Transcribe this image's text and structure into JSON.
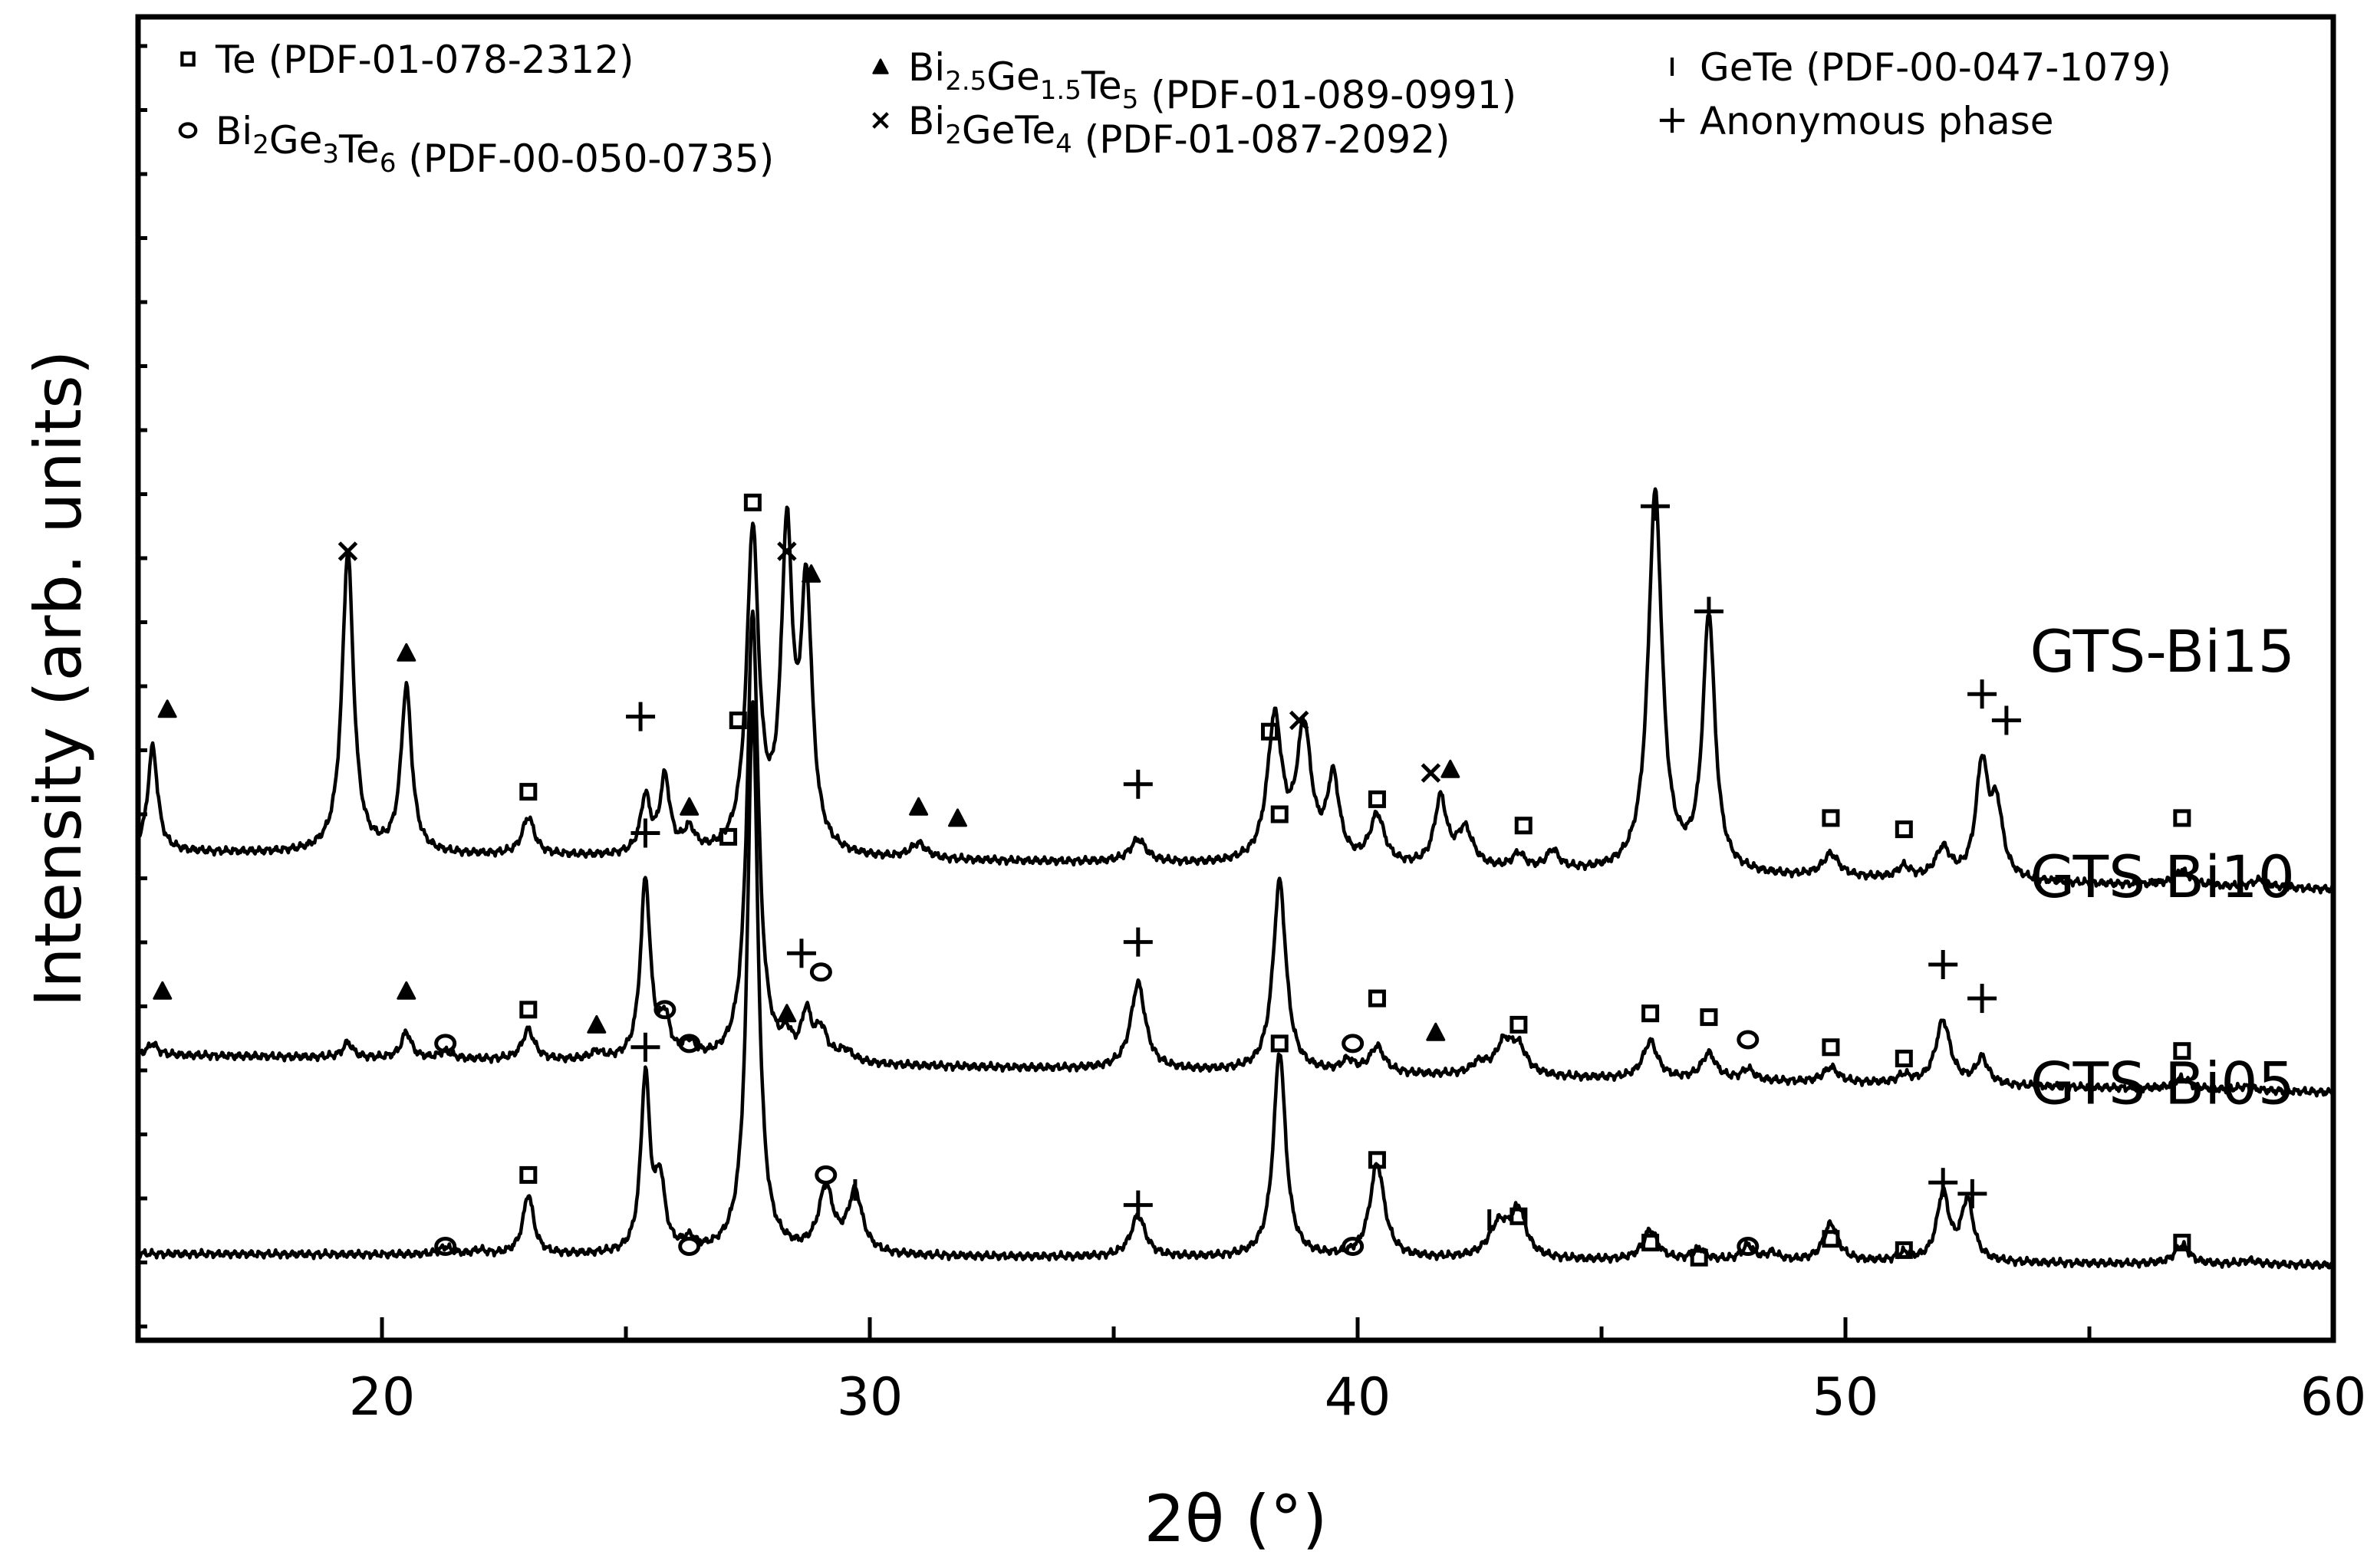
{
  "chart_data": {
    "type": "line",
    "xlabel": "2θ (°)",
    "ylabel": "Intensity (arb. units)",
    "xlim": [
      15,
      60
    ],
    "xticks": [
      20,
      30,
      40,
      50,
      60
    ],
    "grid": false,
    "legend_position": "top",
    "legend": [
      {
        "symbol": "square",
        "parts": [
          [
            "Te (PDF-01-078-2312)",
            ""
          ]
        ]
      },
      {
        "symbol": "circle",
        "parts": [
          [
            "Bi",
            ""
          ],
          [
            "2",
            "sub"
          ],
          [
            "Ge",
            ""
          ],
          [
            "3",
            "sub"
          ],
          [
            "Te",
            ""
          ],
          [
            "6",
            "sub"
          ],
          [
            " (PDF-00-050-0735)",
            ""
          ]
        ]
      },
      {
        "symbol": "triangle",
        "parts": [
          [
            "Bi",
            ""
          ],
          [
            "2.5",
            "sub"
          ],
          [
            "Ge",
            ""
          ],
          [
            "1.5",
            "sub"
          ],
          [
            "Te",
            ""
          ],
          [
            "5",
            "sub"
          ],
          [
            "  (PDF-01-089-0991)",
            ""
          ]
        ]
      },
      {
        "symbol": "cross",
        "parts": [
          [
            "Bi",
            ""
          ],
          [
            "2",
            "sub"
          ],
          [
            "GeTe",
            ""
          ],
          [
            "4",
            "sub"
          ],
          [
            "  (PDF-01-087-2092)",
            ""
          ]
        ]
      },
      {
        "symbol": "bar",
        "parts": [
          [
            "GeTe (PDF-00-047-1079)",
            ""
          ]
        ]
      },
      {
        "symbol": "plus",
        "parts": [
          [
            "Anonymous phase",
            ""
          ]
        ]
      }
    ],
    "series": [
      {
        "name": "GTS-Bi15",
        "baseline": [
          [
            15,
            1.1
          ],
          [
            35,
            1.07
          ],
          [
            60,
            1.0
          ]
        ],
        "peaks": [
          [
            15.3,
            0.28,
            0.12
          ],
          [
            19.3,
            0.8,
            0.14
          ],
          [
            20.5,
            0.44,
            0.13
          ],
          [
            23.0,
            0.1,
            0.15
          ],
          [
            25.4,
            0.15,
            0.12
          ],
          [
            25.8,
            0.2,
            0.12
          ],
          [
            26.3,
            0.06,
            0.15
          ],
          [
            27.6,
            0.85,
            0.15
          ],
          [
            28.3,
            0.82,
            0.14
          ],
          [
            28.7,
            0.68,
            0.14
          ],
          [
            31.0,
            0.04,
            0.2
          ],
          [
            35.5,
            0.06,
            0.2
          ],
          [
            38.3,
            0.38,
            0.18
          ],
          [
            38.9,
            0.35,
            0.18
          ],
          [
            39.5,
            0.22,
            0.15
          ],
          [
            40.4,
            0.13,
            0.18
          ],
          [
            41.7,
            0.18,
            0.15
          ],
          [
            42.2,
            0.1,
            0.2
          ],
          [
            43.3,
            0.04,
            0.15
          ],
          [
            44.0,
            0.05,
            0.15
          ],
          [
            46.1,
            1.01,
            0.17
          ],
          [
            47.2,
            0.68,
            0.15
          ],
          [
            49.7,
            0.06,
            0.2
          ],
          [
            51.2,
            0.03,
            0.15
          ],
          [
            52.0,
            0.08,
            0.18
          ],
          [
            52.8,
            0.3,
            0.15
          ],
          [
            53.1,
            0.18,
            0.15
          ],
          [
            56.9,
            0.04,
            0.2
          ],
          [
            58.5,
            0.02,
            0.2
          ]
        ],
        "markers": [
          [
            "triangle",
            15.6,
            1.48
          ],
          [
            "cross",
            19.3,
            1.9
          ],
          [
            "triangle",
            20.5,
            1.63
          ],
          [
            "square",
            23.0,
            1.26
          ],
          [
            "plus",
            25.3,
            1.46
          ],
          [
            "triangle",
            26.3,
            1.22
          ],
          [
            "square",
            27.6,
            2.03
          ],
          [
            "cross",
            28.3,
            1.9
          ],
          [
            "triangle",
            28.8,
            1.84
          ],
          [
            "triangle",
            31.0,
            1.22
          ],
          [
            "triangle",
            31.8,
            1.19
          ],
          [
            "plus",
            35.5,
            1.28
          ],
          [
            "square",
            38.2,
            1.42
          ],
          [
            "cross",
            38.8,
            1.45
          ],
          [
            "square",
            40.4,
            1.24
          ],
          [
            "cross",
            41.5,
            1.31
          ],
          [
            "triangle",
            41.9,
            1.32
          ],
          [
            "square",
            43.4,
            1.17
          ],
          [
            "plus",
            46.1,
            2.02
          ],
          [
            "plus",
            47.2,
            1.74
          ],
          [
            "square",
            49.7,
            1.19
          ],
          [
            "square",
            51.2,
            1.16
          ],
          [
            "plus",
            52.8,
            1.52
          ],
          [
            "plus",
            53.3,
            1.45
          ],
          [
            "square",
            56.9,
            1.19
          ]
        ]
      },
      {
        "name": "GTS-Bi10",
        "baseline": [
          [
            15,
            0.56
          ],
          [
            35,
            0.52
          ],
          [
            60,
            0.46
          ]
        ],
        "peaks": [
          [
            15.3,
            0.03,
            0.12
          ],
          [
            19.3,
            0.04,
            0.12
          ],
          [
            20.5,
            0.07,
            0.12
          ],
          [
            21.3,
            0.02,
            0.15
          ],
          [
            23.0,
            0.08,
            0.15
          ],
          [
            24.4,
            0.02,
            0.15
          ],
          [
            25.4,
            0.48,
            0.12
          ],
          [
            25.8,
            0.1,
            0.12
          ],
          [
            26.3,
            0.04,
            0.15
          ],
          [
            27.6,
            1.2,
            0.14
          ],
          [
            28.3,
            0.05,
            0.12
          ],
          [
            28.7,
            0.12,
            0.12
          ],
          [
            29.0,
            0.08,
            0.15
          ],
          [
            29.5,
            0.03,
            0.2
          ],
          [
            35.5,
            0.23,
            0.18
          ],
          [
            38.4,
            0.51,
            0.16
          ],
          [
            39.8,
            0.03,
            0.15
          ],
          [
            40.4,
            0.07,
            0.18
          ],
          [
            42.5,
            0.03,
            0.2
          ],
          [
            43.0,
            0.08,
            0.2
          ],
          [
            43.3,
            0.07,
            0.2
          ],
          [
            46.0,
            0.1,
            0.18
          ],
          [
            47.2,
            0.07,
            0.18
          ],
          [
            48.0,
            0.03,
            0.15
          ],
          [
            49.7,
            0.04,
            0.18
          ],
          [
            51.2,
            0.02,
            0.15
          ],
          [
            52.0,
            0.17,
            0.18
          ],
          [
            52.8,
            0.07,
            0.15
          ],
          [
            56.9,
            0.03,
            0.2
          ],
          [
            58.2,
            0.01,
            0.2
          ]
        ],
        "markers": [
          [
            "triangle",
            15.5,
            0.73
          ],
          [
            "triangle",
            20.5,
            0.73
          ],
          [
            "circle",
            21.3,
            0.59
          ],
          [
            "square",
            23.0,
            0.68
          ],
          [
            "triangle",
            24.4,
            0.64
          ],
          [
            "plus",
            25.4,
            1.15
          ],
          [
            "circle",
            25.8,
            0.68
          ],
          [
            "circle",
            26.3,
            0.59
          ],
          [
            "square",
            27.3,
            1.45
          ],
          [
            "triangle",
            28.3,
            0.67
          ],
          [
            "plus",
            28.6,
            0.83
          ],
          [
            "circle",
            29.0,
            0.78
          ],
          [
            "plus",
            35.5,
            0.86
          ],
          [
            "square",
            38.4,
            1.2
          ],
          [
            "circle",
            39.9,
            0.59
          ],
          [
            "square",
            40.4,
            0.71
          ],
          [
            "triangle",
            41.6,
            0.62
          ],
          [
            "square",
            43.3,
            0.64
          ],
          [
            "square",
            46.0,
            0.67
          ],
          [
            "square",
            47.2,
            0.66
          ],
          [
            "circle",
            48.0,
            0.6
          ],
          [
            "square",
            49.7,
            0.58
          ],
          [
            "square",
            51.2,
            0.55
          ],
          [
            "plus",
            52.0,
            0.8
          ],
          [
            "plus",
            52.8,
            0.71
          ],
          [
            "square",
            56.9,
            0.57
          ]
        ]
      },
      {
        "name": "GTS-Bi05",
        "baseline": [
          [
            15,
            0.03
          ],
          [
            35,
            0.02
          ],
          [
            60,
            0.0
          ]
        ],
        "peaks": [
          [
            21.3,
            0.02,
            0.15
          ],
          [
            22.0,
            0.01,
            0.15
          ],
          [
            23.0,
            0.16,
            0.13
          ],
          [
            25.4,
            0.47,
            0.11
          ],
          [
            25.7,
            0.18,
            0.12
          ],
          [
            26.3,
            0.03,
            0.15
          ],
          [
            27.6,
            1.47,
            0.13
          ],
          [
            29.1,
            0.17,
            0.18
          ],
          [
            29.7,
            0.16,
            0.18
          ],
          [
            35.5,
            0.11,
            0.18
          ],
          [
            38.4,
            0.55,
            0.15
          ],
          [
            40.4,
            0.25,
            0.18
          ],
          [
            42.9,
            0.09,
            0.25
          ],
          [
            43.3,
            0.12,
            0.18
          ],
          [
            46.0,
            0.08,
            0.18
          ],
          [
            47.0,
            0.03,
            0.15
          ],
          [
            48.0,
            0.04,
            0.15
          ],
          [
            48.5,
            0.02,
            0.15
          ],
          [
            49.7,
            0.1,
            0.18
          ],
          [
            51.2,
            0.02,
            0.15
          ],
          [
            52.0,
            0.18,
            0.15
          ],
          [
            52.5,
            0.16,
            0.15
          ],
          [
            56.9,
            0.05,
            0.18
          ],
          [
            58.3,
            0.01,
            0.2
          ]
        ],
        "markers": [
          [
            "circle",
            21.3,
            0.05
          ],
          [
            "square",
            23.0,
            0.24
          ],
          [
            "plus",
            25.4,
            0.58
          ],
          [
            "circle",
            26.3,
            0.05
          ],
          [
            "square",
            27.1,
            1.14
          ],
          [
            "circle",
            29.1,
            0.24
          ],
          [
            "bar",
            29.7,
            0.2
          ],
          [
            "plus",
            35.5,
            0.16
          ],
          [
            "square",
            38.4,
            0.59
          ],
          [
            "circle",
            39.9,
            0.05
          ],
          [
            "square",
            40.4,
            0.28
          ],
          [
            "bar",
            42.7,
            0.12
          ],
          [
            "square",
            43.3,
            0.13
          ],
          [
            "square",
            46.0,
            0.06
          ],
          [
            "square",
            47.0,
            0.02
          ],
          [
            "circle",
            48.0,
            0.05
          ],
          [
            "square",
            49.7,
            0.07
          ],
          [
            "square",
            51.2,
            0.04
          ],
          [
            "plus",
            52.0,
            0.22
          ],
          [
            "plus",
            52.6,
            0.19
          ],
          [
            "square",
            56.9,
            0.06
          ]
        ]
      }
    ]
  }
}
